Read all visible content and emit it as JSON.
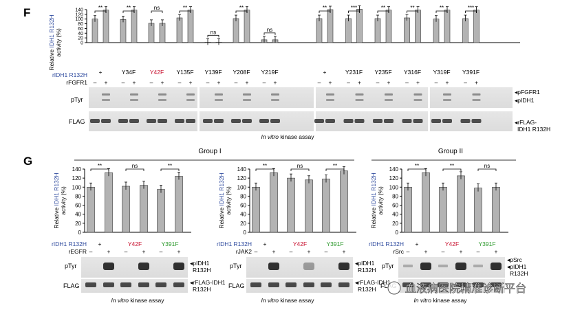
{
  "panel_f": {
    "label": "F",
    "ylabel_line1_a": "Relative ",
    "ylabel_line1_b": "IDH1 R132H",
    "ylabel_line2": "activity (%)",
    "row_label_enzyme_a": "rIDH1",
    "row_label_enzyme_b": " R132H",
    "row_label_kinase": "rFGFR1",
    "mutants": [
      "+",
      "Y34F",
      "Y42F",
      "Y135F",
      "Y139F",
      "Y208F",
      "Y219F",
      "+",
      "Y231F",
      "Y235F",
      "Y316F",
      "Y319F",
      "Y391F"
    ],
    "mutant_highlight": "Y42F",
    "minus": "–",
    "plus": "+",
    "blot_pTyr": "pTyr",
    "blot_FLAG": "FLAG",
    "legend_pFGFR1": "◂pFGFR1",
    "legend_pIDH1": "◂pIDH1",
    "legend_flag_1": "◂rFLAG-",
    "legend_flag_2": "IDH1 R132H",
    "caption_a": "In vitro",
    "caption_b": " kinase assay",
    "significance": [
      "**",
      "**",
      "ns",
      "**",
      "**",
      "ns",
      "**",
      "ns",
      "**",
      "***",
      "**",
      "**",
      "**",
      "**",
      "***"
    ],
    "yticks": [
      "0",
      "20",
      "40",
      "60",
      "80",
      "100",
      "120",
      "140"
    ]
  },
  "panel_g": {
    "label": "G",
    "group1": "Group I",
    "group2": "Group II",
    "ylabel_line1_a": "Relative ",
    "ylabel_line1_b": "IDH1 R132H",
    "ylabel_line2": "activity (%)",
    "row_label_enzyme_a": "rIDH1",
    "row_label_enzyme_b": " R132H",
    "mut_plus": "+",
    "mut_y42f": "Y42F",
    "mut_y391f": "Y391F",
    "minus": "–",
    "plus": "+",
    "kinases": [
      "rEGFR",
      "rJAK2",
      "rSrc"
    ],
    "blot_pTyr": "pTyr",
    "blot_FLAG": "FLAG",
    "legend_pidh1_1": "◂pIDH1",
    "legend_pidh1_2": "R132H",
    "legend_flag_1": "◂rFLAG-IDH1",
    "legend_flag_2": "R132H",
    "legend_psrc": "◂pSrc",
    "legend_pidh1_c": "◂pIDH1",
    "caption_a": "In vitro",
    "caption_b": " kinase assay",
    "sig": [
      "**",
      "ns",
      "**"
    ],
    "yticks": [
      "0",
      "20",
      "40",
      "60",
      "80",
      "100",
      "120",
      "140"
    ]
  },
  "watermark": "血液病医院精准诊断平台",
  "colors": {
    "bar": "#b3b3b3",
    "enzyme_blue": "#2e4a9e",
    "red": "#c8102e",
    "green": "#2e9a2e"
  },
  "chart_data": [
    {
      "type": "bar",
      "title": "",
      "ylabel": "Relative IDH1 R132H activity (%)",
      "ylim": [
        0,
        140
      ],
      "categories": [
        "+",
        "Y34F",
        "Y42F",
        "Y135F",
        "Y139F",
        "Y208F",
        "Y219F",
        "+",
        "Y231F",
        "Y235F",
        "Y316F",
        "Y319F",
        "Y391F"
      ],
      "series": [
        {
          "name": "rFGFR1 –",
          "values": [
            100,
            98,
            82,
            105,
            2,
            102,
            12,
            102,
            102,
            102,
            105,
            100,
            102
          ]
        },
        {
          "name": "rFGFR1 +",
          "values": [
            138,
            138,
            82,
            138,
            2,
            138,
            12,
            140,
            142,
            138,
            138,
            138,
            138
          ]
        }
      ]
    },
    {
      "type": "bar",
      "ylabel": "Relative IDH1 R132H activity (%)",
      "ylim": [
        0,
        140
      ],
      "categories": [
        "+",
        "Y42F",
        "Y391F"
      ],
      "series": [
        {
          "name": "rEGFR –",
          "values": [
            100,
            102,
            95
          ]
        },
        {
          "name": "rEGFR +",
          "values": [
            132,
            104,
            124
          ]
        }
      ]
    },
    {
      "type": "bar",
      "ylabel": "Relative IDH1 R132H activity (%)",
      "ylim": [
        0,
        140
      ],
      "categories": [
        "+",
        "Y42F",
        "Y391F"
      ],
      "series": [
        {
          "name": "rJAK2 –",
          "values": [
            100,
            120,
            118
          ]
        },
        {
          "name": "rJAK2 +",
          "values": [
            132,
            116,
            136
          ]
        }
      ]
    },
    {
      "type": "bar",
      "ylabel": "Relative IDH1 R132H activity (%)",
      "ylim": [
        0,
        140
      ],
      "categories": [
        "+",
        "Y42F",
        "Y391F"
      ],
      "series": [
        {
          "name": "rSrc –",
          "values": [
            100,
            100,
            98
          ]
        },
        {
          "name": "rSrc +",
          "values": [
            132,
            125,
            100
          ]
        }
      ]
    }
  ]
}
